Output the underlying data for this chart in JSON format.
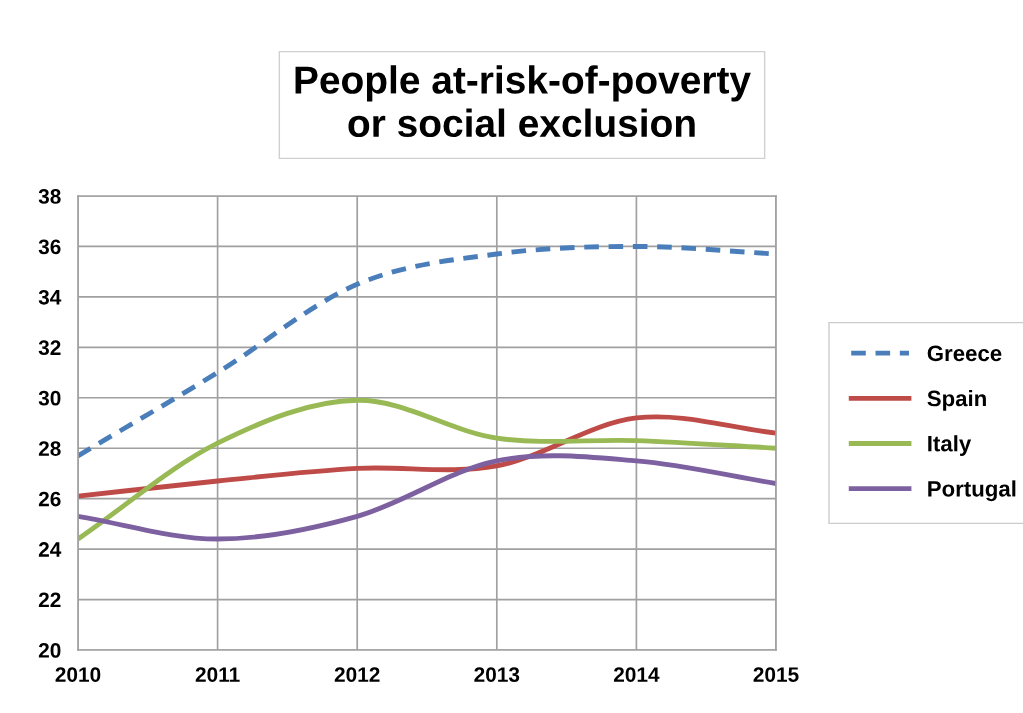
{
  "chart_data": {
    "type": "line",
    "title": "People at-risk-of-poverty\nor social exclusion",
    "x": [
      2010,
      2011,
      2012,
      2013,
      2014,
      2015
    ],
    "series": [
      {
        "name": "Greece",
        "color": "#4a7ebb",
        "line_style": "dashed",
        "values": [
          27.7,
          31.0,
          34.5,
          35.7,
          36.0,
          35.7
        ]
      },
      {
        "name": "Spain",
        "color": "#be4b48",
        "values": [
          26.1,
          26.7,
          27.2,
          27.3,
          29.2,
          28.6
        ]
      },
      {
        "name": "Italy",
        "color": "#98b954",
        "values": [
          24.4,
          28.2,
          29.9,
          28.4,
          28.3,
          28.0
        ]
      },
      {
        "name": "Portugal",
        "color": "#7d60a0",
        "values": [
          25.3,
          24.4,
          25.3,
          27.5,
          27.5,
          26.6
        ]
      }
    ],
    "xlim": [
      2010,
      2015
    ],
    "xticks": [
      2010,
      2011,
      2012,
      2013,
      2014,
      2015
    ],
    "ylim": [
      20,
      38
    ],
    "yticks": [
      20,
      22,
      24,
      26,
      28,
      30,
      32,
      34,
      36,
      38
    ],
    "grid": true,
    "legend": "right",
    "line_style": "solid",
    "marker": "none"
  }
}
